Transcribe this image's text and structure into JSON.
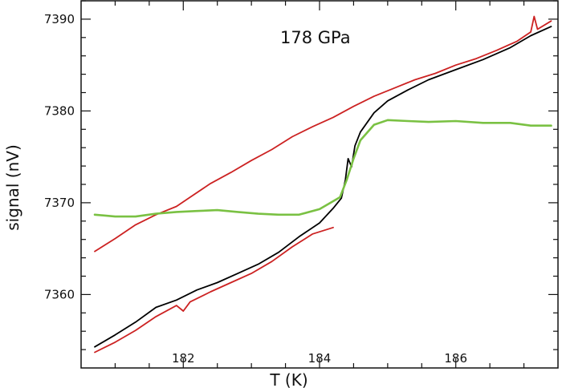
{
  "chart_data": {
    "type": "line",
    "annotation": "178 GPa",
    "xlabel": "T (K)",
    "ylabel": "signal (nV)",
    "xlim": [
      180.5,
      187.5
    ],
    "ylim": [
      7352,
      7392
    ],
    "xticks": [
      182,
      184,
      186
    ],
    "yticks": [
      7360,
      7370,
      7380,
      7390
    ],
    "grid": false,
    "series": [
      {
        "color": "#000000",
        "x": [
          180.7,
          181.0,
          181.3,
          181.6,
          181.9,
          182.2,
          182.5,
          182.8,
          183.1,
          183.4,
          183.7,
          184.0,
          184.2,
          184.32,
          184.38,
          184.42,
          184.47,
          184.52,
          184.6,
          184.8,
          185.0,
          185.3,
          185.6,
          186.0,
          186.4,
          186.8,
          187.1,
          187.4
        ],
        "y": [
          7354.3,
          7355.6,
          7357.0,
          7358.6,
          7359.4,
          7360.5,
          7361.3,
          7362.3,
          7363.3,
          7364.6,
          7366.3,
          7367.8,
          7369.4,
          7370.5,
          7372.5,
          7374.8,
          7373.9,
          7376.2,
          7377.7,
          7379.8,
          7381.1,
          7382.3,
          7383.4,
          7384.5,
          7385.6,
          7386.9,
          7388.2,
          7389.2
        ]
      },
      {
        "color": "#cc2222",
        "x": [
          180.7,
          181.0,
          181.3,
          181.6,
          181.9,
          182.0,
          182.1,
          182.4,
          182.7,
          183.0,
          183.3,
          183.6,
          183.9,
          184.2
        ],
        "y": [
          7353.7,
          7354.8,
          7356.1,
          7357.6,
          7358.8,
          7358.2,
          7359.2,
          7360.3,
          7361.3,
          7362.3,
          7363.6,
          7365.2,
          7366.6,
          7367.3
        ]
      },
      {
        "color": "#cc2222",
        "x": [
          180.7,
          181.0,
          181.3,
          181.6,
          181.9,
          182.1,
          182.4,
          182.7,
          183.0,
          183.3,
          183.6,
          183.9,
          184.2,
          184.5,
          184.8,
          185.1,
          185.4,
          185.7,
          186.0,
          186.3,
          186.6,
          186.9,
          187.1,
          187.15,
          187.2,
          187.4
        ],
        "y": [
          7364.7,
          7366.1,
          7367.6,
          7368.7,
          7369.6,
          7370.6,
          7372.1,
          7373.3,
          7374.6,
          7375.8,
          7377.2,
          7378.3,
          7379.3,
          7380.5,
          7381.6,
          7382.5,
          7383.4,
          7384.1,
          7385.0,
          7385.7,
          7386.6,
          7387.6,
          7388.6,
          7390.3,
          7388.9,
          7389.8
        ]
      },
      {
        "color": "#7ac143",
        "x": [
          180.7,
          181.0,
          181.3,
          181.6,
          181.9,
          182.2,
          182.5,
          182.8,
          183.1,
          183.4,
          183.7,
          184.0,
          184.3,
          184.4,
          184.5,
          184.6,
          184.8,
          185.0,
          185.3,
          185.6,
          186.0,
          186.4,
          186.8,
          187.1,
          187.4
        ],
        "y": [
          7368.7,
          7368.5,
          7368.5,
          7368.8,
          7369.0,
          7369.1,
          7369.2,
          7369.0,
          7368.8,
          7368.7,
          7368.7,
          7369.3,
          7370.6,
          7372.5,
          7374.8,
          7376.8,
          7378.5,
          7379.0,
          7378.9,
          7378.8,
          7378.9,
          7378.7,
          7378.7,
          7378.4,
          7378.4
        ]
      }
    ]
  }
}
